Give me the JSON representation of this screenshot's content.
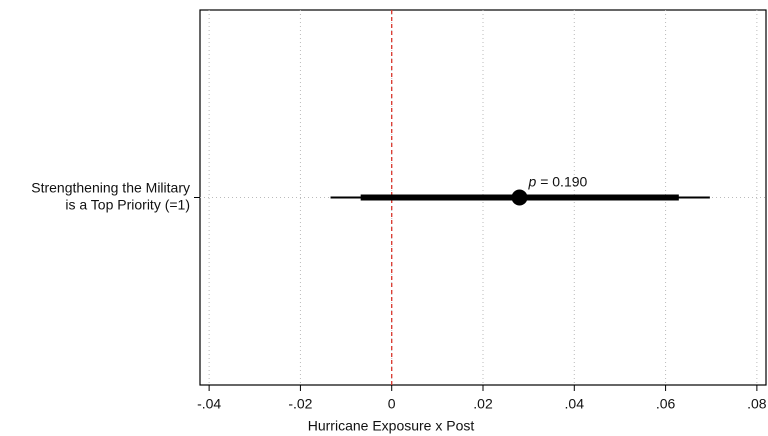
{
  "chart_data": {
    "type": "coefplot",
    "xlabel": "Hurricane Exposure x Post",
    "categories": [
      [
        "Strengthening the Military",
        "is a Top Priority (=1)"
      ]
    ],
    "series": [
      {
        "color": "#000000",
        "values": [
          0.028
        ],
        "ci_inner": [
          [
            -0.0068,
            0.0629
          ]
        ],
        "ci_outer": [
          [
            -0.0134,
            0.0697
          ]
        ]
      }
    ],
    "annotation": {
      "symbol": "p",
      "text": "= 0.190"
    },
    "reference_line": {
      "value": 0,
      "color": "#d9352b"
    },
    "xlim": [
      -0.042,
      0.082
    ],
    "xticks": [
      {
        "value": -0.04,
        "label": "-.04"
      },
      {
        "value": -0.02,
        "label": "-.02"
      },
      0,
      {
        "value": 0.02,
        "label": ".02"
      },
      {
        "value": 0.04,
        "label": ".04"
      },
      {
        "value": 0.06,
        "label": ".06"
      },
      {
        "value": 0.08,
        "label": ".08"
      }
    ],
    "grid": true
  }
}
